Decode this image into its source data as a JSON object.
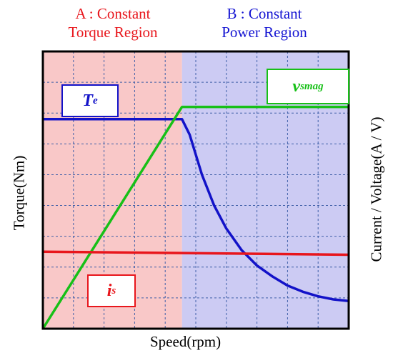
{
  "regions": [
    {
      "line1": "A : Constant",
      "line2": "Torque Region",
      "color": "#e8161c",
      "fill": "#f9c8c8"
    },
    {
      "line1": "B : Constant",
      "line2": "Power Region",
      "color": "#1414d2",
      "fill": "#cccbf3"
    }
  ],
  "axes": {
    "xlabel": "Speed(rpm)",
    "ylabel_left": "Torque(Nm)",
    "ylabel_right": "Current / Voltage(A / V)"
  },
  "legend": {
    "te": {
      "main": "T",
      "sub": "e",
      "color": "#1212c8"
    },
    "vsmag": {
      "main": "v",
      "sub": "smag",
      "color": "#17c017"
    },
    "is": {
      "main": "i",
      "sub": "s",
      "color": "#e8161c"
    }
  },
  "chart_data": {
    "type": "line",
    "title": "",
    "xlabel": "Speed(rpm)",
    "ylabel": "Torque(Nm)",
    "y2label": "Current / Voltage(A / V)",
    "xlim": [
      0,
      10
    ],
    "ylim": [
      0,
      9
    ],
    "grid": true,
    "region_boundary_x": 4.55,
    "series": [
      {
        "name": "T_e",
        "color": "#1212c8",
        "x": [
          0,
          4.55,
          4.8,
          5.2,
          5.6,
          6.0,
          6.5,
          7.0,
          7.5,
          8.0,
          8.5,
          9.0,
          9.5,
          10.0
        ],
        "y": [
          6.8,
          6.8,
          6.3,
          5.0,
          4.0,
          3.25,
          2.55,
          2.05,
          1.7,
          1.4,
          1.2,
          1.05,
          0.95,
          0.9
        ]
      },
      {
        "name": "v_smag",
        "color": "#17c017",
        "x": [
          0,
          4.55,
          10.0
        ],
        "y": [
          0,
          7.2,
          7.2
        ]
      },
      {
        "name": "i_s",
        "color": "#e8161c",
        "x": [
          0,
          10.0
        ],
        "y": [
          2.5,
          2.4
        ]
      }
    ]
  }
}
